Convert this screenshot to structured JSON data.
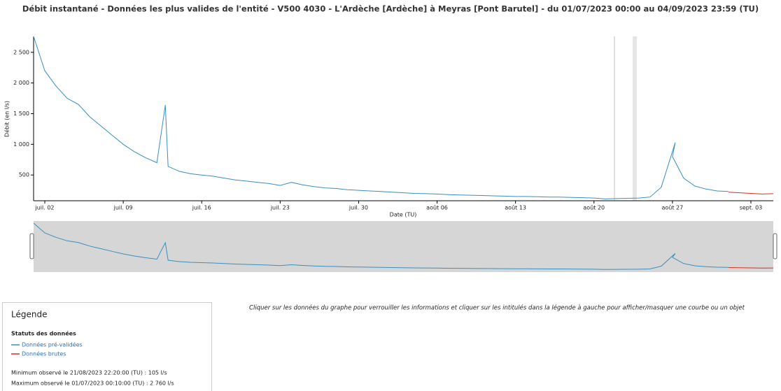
{
  "chart_data": {
    "type": "line",
    "title": "Débit instantané - Données les plus valides de l'entité - V500 4030 - L'Ardèche [Ardèche] à Meyras [Pont Barutel] - du 01/07/2023 00:00 au 04/09/2023 23:59 (TU)",
    "x_label": "Date (TU)",
    "y_label": "Débit (en l/s)",
    "xlim": [
      "2023-07-01 00:00",
      "2023-09-04 23:59"
    ],
    "xticks": [
      {
        "value": "2023-07-02",
        "label": "juil. 02"
      },
      {
        "value": "2023-07-09",
        "label": "juil. 09"
      },
      {
        "value": "2023-07-16",
        "label": "juil. 16"
      },
      {
        "value": "2023-07-23",
        "label": "juil. 23"
      },
      {
        "value": "2023-07-30",
        "label": "juil. 30"
      },
      {
        "value": "2023-08-06",
        "label": "août 06"
      },
      {
        "value": "2023-08-13",
        "label": "août 13"
      },
      {
        "value": "2023-08-20",
        "label": "août 20"
      },
      {
        "value": "2023-08-27",
        "label": "août 27"
      },
      {
        "value": "2023-09-03",
        "label": "sept. 03"
      }
    ],
    "ylim": [
      80,
      2760
    ],
    "yticks": [
      500,
      {
        "value": 1000,
        "label": "1 000"
      },
      {
        "value": 1500,
        "label": "1 500"
      },
      {
        "value": 2000,
        "label": "2 000"
      },
      {
        "value": 2500,
        "label": "2 500"
      }
    ],
    "series": [
      {
        "name": "Données pré-validées",
        "color": "#3a8fbf",
        "x": [
          "2023-07-01",
          "2023-07-02",
          "2023-07-03",
          "2023-07-04",
          "2023-07-05",
          "2023-07-06",
          "2023-07-07",
          "2023-07-08",
          "2023-07-09",
          "2023-07-10",
          "2023-07-11",
          "2023-07-12",
          "2023-07-12 18:00",
          "2023-07-13",
          "2023-07-14",
          "2023-07-15",
          "2023-07-16",
          "2023-07-17",
          "2023-07-18",
          "2023-07-19",
          "2023-07-20",
          "2023-07-21",
          "2023-07-22",
          "2023-07-23",
          "2023-07-24",
          "2023-07-25",
          "2023-07-26",
          "2023-07-27",
          "2023-07-28",
          "2023-07-29",
          "2023-07-30",
          "2023-07-31",
          "2023-08-01",
          "2023-08-02",
          "2023-08-03",
          "2023-08-04",
          "2023-08-05",
          "2023-08-06",
          "2023-08-07",
          "2023-08-08",
          "2023-08-09",
          "2023-08-10",
          "2023-08-11",
          "2023-08-12",
          "2023-08-13",
          "2023-08-14",
          "2023-08-15",
          "2023-08-16",
          "2023-08-17",
          "2023-08-18",
          "2023-08-19",
          "2023-08-20",
          "2023-08-21",
          "2023-08-22",
          "2023-08-23",
          "2023-08-24",
          "2023-08-25",
          "2023-08-26",
          "2023-08-27 06:00",
          "2023-08-27",
          "2023-08-28",
          "2023-08-29",
          "2023-08-30",
          "2023-08-31",
          "2023-09-01"
        ],
        "values": [
          2760,
          2200,
          1950,
          1750,
          1650,
          1450,
          1300,
          1150,
          1000,
          880,
          780,
          700,
          1640,
          640,
          560,
          520,
          500,
          480,
          450,
          420,
          400,
          380,
          360,
          330,
          380,
          340,
          310,
          290,
          280,
          260,
          250,
          240,
          230,
          220,
          210,
          200,
          195,
          190,
          180,
          175,
          170,
          165,
          160,
          155,
          150,
          150,
          145,
          140,
          140,
          135,
          130,
          125,
          110,
          115,
          120,
          125,
          140,
          300,
          1030,
          800,
          450,
          320,
          270,
          240,
          230
        ]
      },
      {
        "name": "Données brutes",
        "color": "#d9301e",
        "x": [
          "2023-09-01",
          "2023-09-02",
          "2023-09-03",
          "2023-09-04",
          "2023-09-04 23:59"
        ],
        "values": [
          220,
          210,
          200,
          190,
          195
        ]
      }
    ]
  },
  "legend": {
    "title": "Légende",
    "subtitle": "Statuts des données",
    "min": "Minimum observé le 21/08/2023 22:20:00 (TU) : 105 l/s",
    "max": "Maximum observé le 01/07/2023 00:10:00 (TU) : 2 760 l/s"
  },
  "instruction": "Cliquer sur les données du graphe pour verrouiller les informations et cliquer sur les intitulés dans la légende à gauche pour afficher/masquer une courbe ou un objet"
}
